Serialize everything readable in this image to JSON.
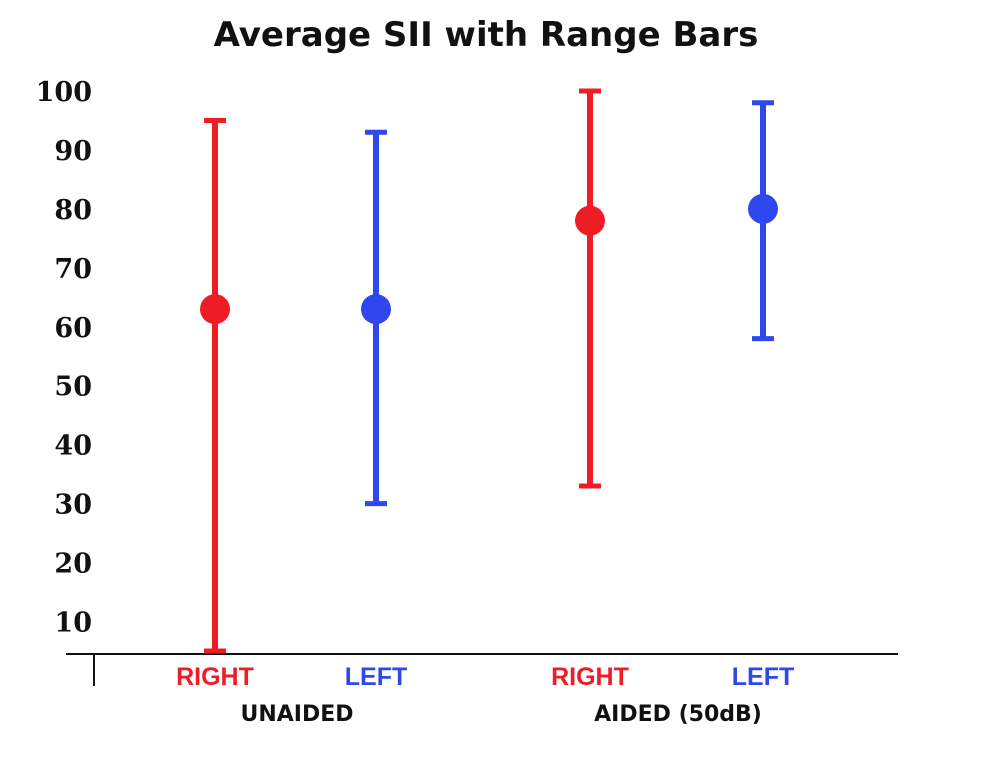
{
  "chart_data": {
    "type": "scatter",
    "title": "Average SII with Range Bars",
    "xlabel": "",
    "ylabel": "",
    "ylim": [
      5,
      100
    ],
    "y_ticks": [
      "100",
      "90",
      "80",
      "70",
      "60",
      "50",
      "40",
      "30",
      "20",
      "10"
    ],
    "groups": [
      "UNAIDED",
      "AIDED (50dB)"
    ],
    "categories": [
      "RIGHT",
      "LEFT",
      "RIGHT",
      "LEFT"
    ],
    "category_groups": [
      0,
      0,
      1,
      1
    ],
    "colors": {
      "right": "#ee1c24",
      "left": "#2f48ee"
    },
    "points": [
      {
        "category": "RIGHT",
        "group": "UNAIDED",
        "mean": 63,
        "min": 5,
        "max": 95,
        "color": "#ee1c24"
      },
      {
        "category": "LEFT",
        "group": "UNAIDED",
        "mean": 63,
        "min": 30,
        "max": 93,
        "color": "#2f48ee"
      },
      {
        "category": "RIGHT",
        "group": "AIDED (50dB)",
        "mean": 78,
        "min": 33,
        "max": 100,
        "color": "#ee1c24"
      },
      {
        "category": "LEFT",
        "group": "AIDED (50dB)",
        "mean": 80,
        "min": 58,
        "max": 98,
        "color": "#2f48ee"
      }
    ],
    "legend": "none",
    "grid": false
  }
}
